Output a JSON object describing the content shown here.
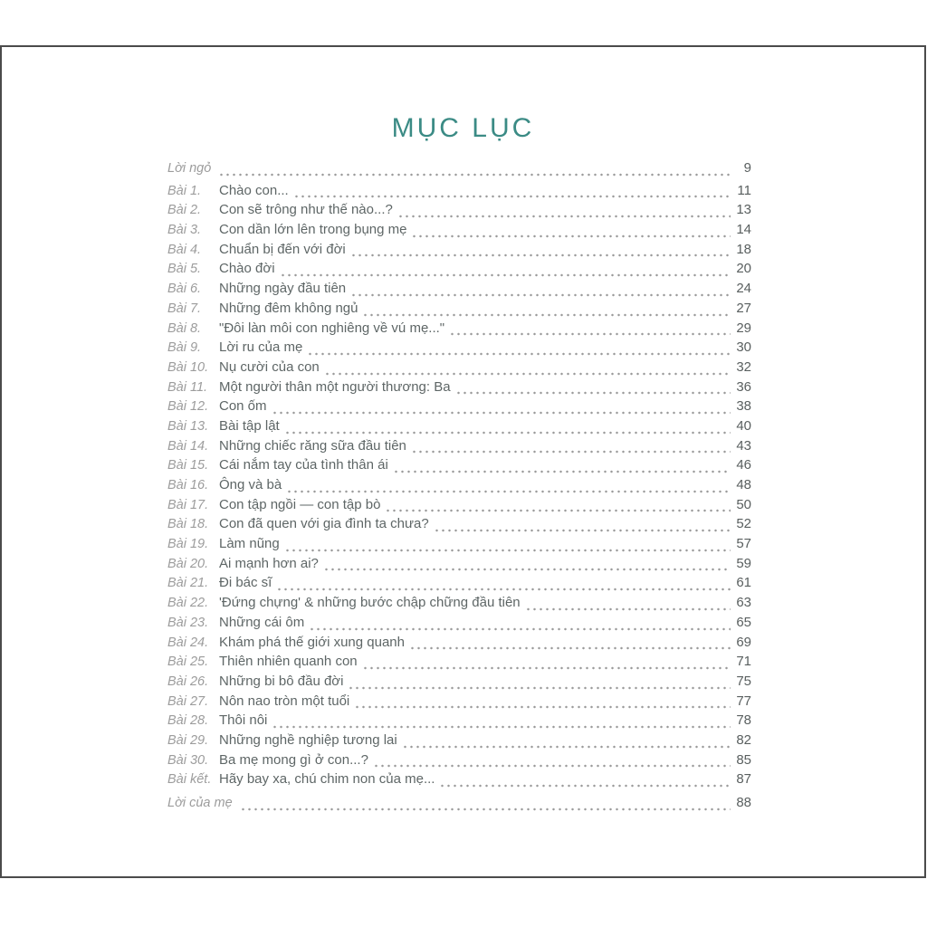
{
  "document": {
    "title": "MỤC LỤC"
  },
  "colors": {
    "title_accent": "#3b8b85",
    "frame_border": "#4b4b4b",
    "label_gray": "#9c9c9c",
    "text_gray": "#5e6666",
    "dot_leader_gray": "#9a9a9a"
  },
  "toc": {
    "entries": [
      {
        "label": "Lời ngỏ",
        "title": "",
        "page": "9",
        "section": true
      },
      {
        "label": "Bài 1.",
        "title": "Chào con...",
        "page": "11"
      },
      {
        "label": "Bài 2.",
        "title": "Con sẽ trông như thế nào...?",
        "page": "13"
      },
      {
        "label": "Bài 3.",
        "title": "Con dần lớn lên trong bụng mẹ",
        "page": "14"
      },
      {
        "label": "Bài 4.",
        "title": "Chuẩn bị đến với đời",
        "page": "18"
      },
      {
        "label": "Bài 5.",
        "title": "Chào đời",
        "page": "20"
      },
      {
        "label": "Bài 6.",
        "title": "Những ngày đầu tiên",
        "page": "24"
      },
      {
        "label": "Bài 7.",
        "title": "Những đêm không ngủ",
        "page": "27"
      },
      {
        "label": "Bài 8.",
        "title": "\"Đôi làn môi con nghiêng về vú mẹ...\"",
        "page": "29"
      },
      {
        "label": "Bài 9.",
        "title": "Lời ru của mẹ",
        "page": "30"
      },
      {
        "label": "Bài 10.",
        "title": "Nụ cười của con",
        "page": "32"
      },
      {
        "label": "Bài 11.",
        "title": "Một người thân một người thương: Ba",
        "page": "36"
      },
      {
        "label": "Bài 12.",
        "title": "Con ốm",
        "page": "38"
      },
      {
        "label": "Bài 13.",
        "title": "Bài tập lật",
        "page": "40"
      },
      {
        "label": "Bài 14.",
        "title": "Những chiếc răng sữa đầu tiên",
        "page": "43"
      },
      {
        "label": "Bài 15.",
        "title": "Cái nắm tay của tình thân ái",
        "page": "46"
      },
      {
        "label": "Bài 16.",
        "title": "Ông và bà",
        "page": "48"
      },
      {
        "label": "Bài 17.",
        "title": "Con tập ngồi — con tập bò",
        "page": "50"
      },
      {
        "label": "Bài 18.",
        "title": "Con đã quen với gia đình ta chưa?",
        "page": "52"
      },
      {
        "label": "Bài 19.",
        "title": "Làm nũng",
        "page": "57"
      },
      {
        "label": "Bài 20.",
        "title": "Ai mạnh hơn ai?",
        "page": "59"
      },
      {
        "label": "Bài 21.",
        "title": "Đi bác sĩ",
        "page": "61"
      },
      {
        "label": "Bài 22.",
        "title": "'Đứng chựng' & những bước chập chững đầu tiên",
        "page": "63"
      },
      {
        "label": "Bài 23.",
        "title": "Những cái ôm",
        "page": "65"
      },
      {
        "label": "Bài 24.",
        "title": "Khám phá thế giới xung quanh",
        "page": "69"
      },
      {
        "label": "Bài 25.",
        "title": "Thiên nhiên quanh con",
        "page": "71"
      },
      {
        "label": "Bài 26.",
        "title": "Những bi bô đầu đời",
        "page": "75"
      },
      {
        "label": "Bài 27.",
        "title": "Nôn nao tròn một tuổi",
        "page": "77"
      },
      {
        "label": "Bài 28.",
        "title": "Thôi nôi",
        "page": "78"
      },
      {
        "label": "Bài 29.",
        "title": "Những nghề nghiệp tương lai",
        "page": "82"
      },
      {
        "label": "Bài 30.",
        "title": "Ba mẹ mong gì ở con...?",
        "page": "85"
      },
      {
        "label": "Bài kết.",
        "title": "Hãy bay xa, chú chim non của mẹ...",
        "page": "87"
      },
      {
        "label": "Lời của mẹ",
        "title": "",
        "page": "88",
        "section": true
      }
    ]
  }
}
